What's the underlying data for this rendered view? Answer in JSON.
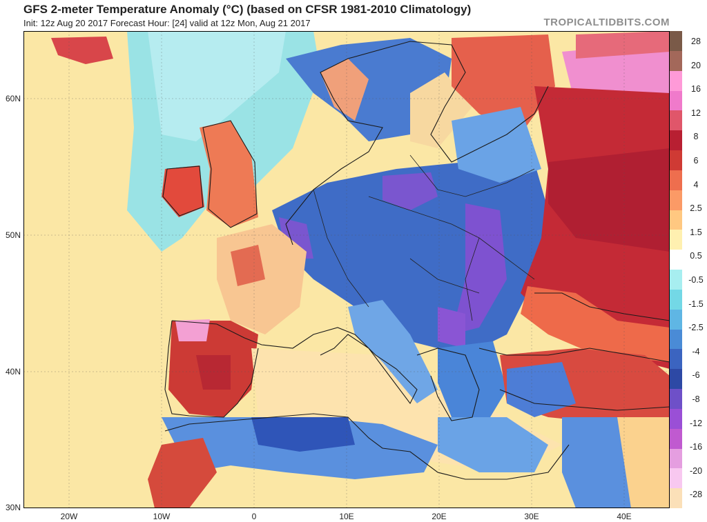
{
  "header": {
    "title": "GFS 2-meter Temperature Anomaly (°C) (based on CFSR 1981-2010 Climatology)",
    "subtitle": "Init: 12z Aug 20 2017   Forecast Hour: [24]   valid at 12z Mon, Aug 21 2017",
    "brand": "TROPICALTIDBITS.COM"
  },
  "axes": {
    "lat_labels": [
      "60N",
      "50N",
      "40N",
      "30N"
    ],
    "lon_labels": [
      "20W",
      "10W",
      "0",
      "10E",
      "20E",
      "30E",
      "40E"
    ]
  },
  "colorbar": {
    "labels": [
      "28",
      "20",
      "16",
      "12",
      "8",
      "6",
      "4",
      "2.5",
      "1.5",
      "0.5",
      "-0.5",
      "-1.5",
      "-2.5",
      "-4",
      "-6",
      "-8",
      "-12",
      "-16",
      "-20",
      "-28"
    ],
    "colors": [
      "#7a5a48",
      "#a3685a",
      "#ff9ad8",
      "#f07acb",
      "#e0566a",
      "#b81f32",
      "#cf3a34",
      "#ee6e4e",
      "#fb9a66",
      "#ffc881",
      "#fff0b0",
      "#ffffff",
      "#a7eef0",
      "#73d8e6",
      "#5fb6e4",
      "#4a8bd6",
      "#3b64c0",
      "#2d49a5",
      "#6e50c8",
      "#9a4fd6",
      "#c05ad0",
      "#e59ee0",
      "#f8c8f0",
      "#fbe0b8"
    ]
  },
  "colors": {
    "warm_strong": "#c5272f",
    "warm_mid": "#ec6b4e",
    "warm_light": "#fbd28e",
    "neutral": "#fbe7a5",
    "cool_light": "#86e3ee",
    "cool_mid": "#5a90de",
    "cool_strong": "#2f55b8",
    "cold_extreme": "#7e52d0",
    "pink_extreme": "#f188d0"
  }
}
